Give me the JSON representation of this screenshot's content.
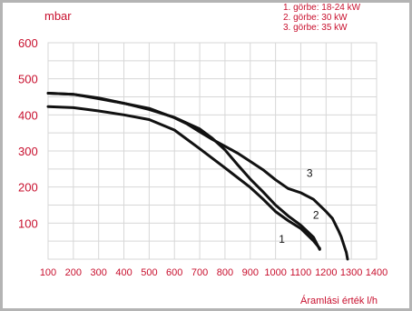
{
  "colors": {
    "frame": "#b4b4b4",
    "grid": "#d7d7d7",
    "text": "#c8102e",
    "curve": "#111111",
    "background": "#ffffff"
  },
  "chart_data": {
    "type": "line",
    "y_unit": "mbar",
    "xlabel": "Áramlási érték l/h",
    "ylabel": "mbar",
    "xlim": [
      100,
      1400
    ],
    "ylim": [
      0,
      600
    ],
    "x_ticks": [
      100,
      200,
      300,
      400,
      500,
      600,
      700,
      800,
      900,
      1000,
      1100,
      1200,
      1300,
      1400
    ],
    "y_ticks": [
      100,
      200,
      300,
      400,
      500,
      600
    ],
    "grid": true,
    "legend": [
      "1. görbe: 18-24 kW",
      "2. görbe: 30 kW",
      "3. görbe: 35 kW"
    ],
    "legend_position": "top-right",
    "series": [
      {
        "name": "1",
        "x": [
          100,
          200,
          300,
          400,
          500,
          600,
          700,
          800,
          900,
          950,
          1000,
          1050,
          1100,
          1150,
          1175
        ],
        "y": [
          423,
          420,
          411,
          400,
          387,
          358,
          306,
          253,
          199,
          167,
          132,
          107,
          85,
          51,
          30
        ]
      },
      {
        "name": "2",
        "x": [
          100,
          200,
          300,
          400,
          500,
          600,
          700,
          750,
          800,
          850,
          900,
          950,
          1000,
          1050,
          1100,
          1150,
          1175
        ],
        "y": [
          460,
          457,
          445,
          432,
          415,
          393,
          361,
          335,
          303,
          262,
          222,
          187,
          150,
          120,
          94,
          61,
          27
        ]
      },
      {
        "name": "3",
        "x": [
          100,
          200,
          300,
          400,
          500,
          600,
          650,
          700,
          750,
          800,
          850,
          900,
          950,
          1000,
          1050,
          1100,
          1150,
          1200,
          1225,
          1250,
          1260,
          1270,
          1280,
          1285
        ],
        "y": [
          460,
          457,
          447,
          432,
          418,
          392,
          375,
          353,
          332,
          313,
          294,
          271,
          248,
          220,
          196,
          184,
          166,
          132,
          113,
          78,
          62,
          40,
          19,
          0
        ]
      }
    ],
    "curve_labels": [
      {
        "text": "1",
        "x": 1025,
        "y": 45
      },
      {
        "text": "2",
        "x": 1160,
        "y": 112
      },
      {
        "text": "3",
        "x": 1135,
        "y": 228
      }
    ]
  }
}
